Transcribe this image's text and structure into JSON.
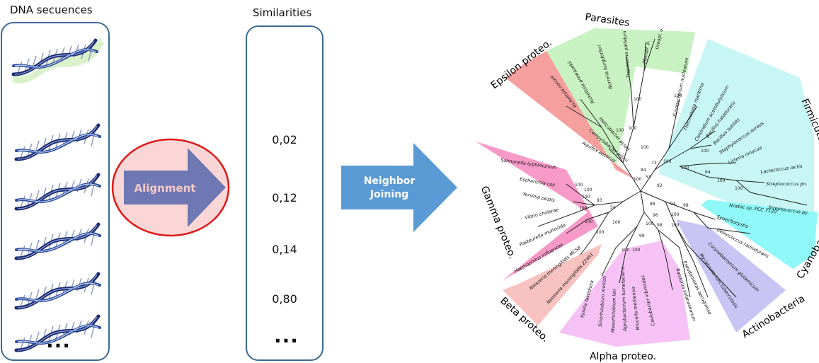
{
  "dna": {
    "title": "DNA secuences",
    "ellipsis": "..."
  },
  "alignment": {
    "label": "Alignment"
  },
  "similarities": {
    "title": "Similarities",
    "values": [
      "0,02",
      "0,12",
      "0,14",
      "0,80"
    ],
    "ellipsis": "..."
  },
  "nj": {
    "line1": "Neighbor",
    "line2": "Joining"
  },
  "tree": {
    "clades": {
      "parasites": "Parasites",
      "epsilon": "Epsilon proteo.",
      "firmicutes": "Firmicutes",
      "gamma": "Gamma proteo.",
      "cyanobacteria": "Cyanobacteria",
      "beta": "Beta proteo.",
      "alpha": "Alpha proteo.",
      "actinobacteria": "Actinobacteria"
    },
    "taxa": {
      "t_mycopl_p": "Mycopl. p.",
      "t_ureapl": "Ureapl. u.",
      "t_treponema": "Treponema pallidum",
      "t_borrelia": "Borrelia burgdorferi",
      "t_rickettsia_p": "Rickettsia prowazekii",
      "t_rickettsia_c": "Rickettsia conorii",
      "t_fuso": "Fusobacterium nucleatum",
      "t_thermotoga": "Thermotoga maritima",
      "t_clostridium": "Clostridium acetobutylicum",
      "t_bhalo": "Bacillus halodurans",
      "t_bsub": "Bacillus subtilis",
      "t_staph": "Staphylococcus aureus",
      "t_listeria": "Listeria innocua",
      "t_lacto": "Lactococcus lactis",
      "t_strep_pn": "Streptococcus pn.",
      "t_strep_py": "Streptococcus py.",
      "t_helico": "Helicobacter pylori",
      "t_campy": "Campylobacter jejuni",
      "t_aquifex": "Aquifex aeolicus",
      "t_salmonella": "Salmonella typhimurium",
      "t_ecoli": "Escherichia coli",
      "t_yersinia": "Yersinia pestis",
      "t_vibrio": "Vibrio cholerae",
      "t_pasteurella": "Pasteurella multocida",
      "t_haemophilus": "Haemophilus influenzae",
      "t_neiss_mc": "Neisseria meningitidis MC58",
      "t_neiss_z": "Neisseria meningitidis Z2491",
      "t_xylella": "Xylella fastidiosa",
      "t_sinorhizo": "Sinorhizobium meliloti",
      "t_mesorhizo": "Mesorhizobium loti",
      "t_agrobact": "Agrobacterium tumefaciens",
      "t_brucella": "Brucella melitensis",
      "t_caulo": "Caulobacter vibrioides",
      "t_ralstonia": "Ralstonia solanacearum",
      "t_pseudo": "Pseudomonas aeruginosa",
      "t_mycobact": "Mycobacterium tuberculosis",
      "t_coryne": "Corynebacterium glutamicum",
      "t_deino": "Deinococcus radiodurans",
      "t_synecho": "Synechocystis",
      "t_nostoc": "Nostoc sp. PCC 7120"
    },
    "bootstrap": {
      "b1": "100",
      "b2": "100",
      "b3": "100",
      "b4": "100",
      "b5": "73",
      "b6": "100",
      "b7": "84",
      "b8": "100",
      "b9": "53",
      "b10": "92",
      "b11": "100",
      "b12": "100",
      "b13": "100",
      "b14": "64",
      "b15": "100",
      "b16": "100",
      "b17": "100",
      "b18": "100",
      "b19": "100",
      "b20": "100",
      "b21": "93",
      "b22": "100",
      "b23": "100",
      "b24": "54",
      "b25": "100",
      "b26": "96",
      "b27": "94",
      "b28": "88",
      "b29": "98",
      "b30": "100",
      "b31": "100",
      "b32": "99",
      "b33": "100",
      "b34": "100",
      "b35": "98",
      "b36": "100"
    }
  },
  "colors": {
    "panel_border": "#3a6a96",
    "alignment_ellipse_fill": "#fbd6d6",
    "alignment_ellipse_stroke": "#e01818",
    "alignment_arrow": "#7078b4",
    "alignment_text": "#f2c8c8",
    "nj_arrow": "#5b9bd5",
    "parasites": "#c9f2c2",
    "epsilon": "#f49a9a",
    "firmicutes": "#c7f6f5",
    "gamma": "#f79ac8",
    "cyanobacteria": "#8ff8f8",
    "beta": "#f8c2c0",
    "alpha": "#f6c2f6",
    "actinobacteria": "#c8c4f4"
  },
  "icons": {
    "dna": "dna-double-helix-icon"
  }
}
